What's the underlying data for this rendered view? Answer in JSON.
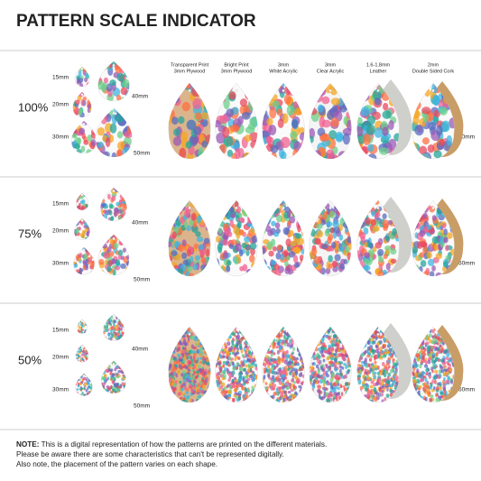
{
  "title": "PATTERN SCALE INDICATOR",
  "materials": [
    {
      "line1": "Transparent Print",
      "line2": "3mm Plywood"
    },
    {
      "line1": "Bright Print",
      "line2": "3mm Plywood"
    },
    {
      "line1": "3mm",
      "line2": "White Acrylic"
    },
    {
      "line1": "3mm",
      "line2": "Clear Acrylic"
    },
    {
      "line1": "1.6-1.8mm",
      "line2": "Leather"
    },
    {
      "line1": "2mm",
      "line2": "Double Sided Cork"
    }
  ],
  "rows": [
    {
      "scale": "100%",
      "sizes": [
        "15mm",
        "20mm",
        "30mm",
        "40mm",
        "50mm",
        "60mm"
      ]
    },
    {
      "scale": "75%",
      "sizes": [
        "15mm",
        "20mm",
        "30mm",
        "40mm",
        "50mm",
        "60mm"
      ]
    },
    {
      "scale": "50%",
      "sizes": [
        "15mm",
        "20mm",
        "30mm",
        "40mm",
        "50mm",
        "60mm"
      ]
    }
  ],
  "note": {
    "label": "NOTE:",
    "lines": [
      "This is a digital representation of how the patterns are printed on the different materials.",
      "Please be aware there are some characteristics that can't be represented digitally.",
      "Also note, the placement of the pattern varies on each shape."
    ]
  }
}
